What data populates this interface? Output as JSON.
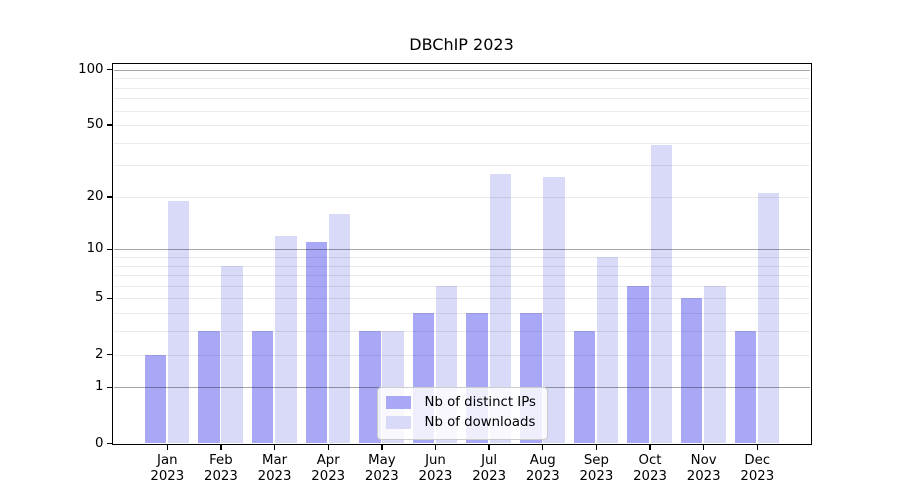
{
  "title": "DBChIP 2023",
  "colors": {
    "ips": "#a8a8f6",
    "downloads": "#d9d9f8",
    "grid_major": "rgba(0,0,0,0.35)",
    "grid_minor": "rgba(0,0,0,0.08)",
    "axis": "#000000"
  },
  "y_axis": {
    "tick_values": [
      100,
      50,
      20,
      10,
      5,
      2,
      1,
      0
    ],
    "tick_labels": [
      "100",
      "50",
      "20",
      "10",
      "5",
      "2",
      "1",
      "0"
    ],
    "major_grid_values": [
      1,
      10,
      100
    ],
    "minor_grid_values": [
      2,
      3,
      4,
      5,
      6,
      7,
      8,
      9,
      20,
      30,
      40,
      50,
      60,
      70,
      80,
      90
    ]
  },
  "x_axis": {
    "months": [
      "Jan",
      "Feb",
      "Mar",
      "Apr",
      "May",
      "Jun",
      "Jul",
      "Aug",
      "Sep",
      "Oct",
      "Nov",
      "Dec"
    ],
    "year": "2023"
  },
  "legend": {
    "items": [
      {
        "label": "Nb of distinct IPs",
        "color_key": "ips"
      },
      {
        "label": "Nb of downloads",
        "color_key": "downloads"
      }
    ]
  },
  "chart_data": {
    "type": "bar",
    "title": "DBChIP 2023",
    "categories": [
      "Jan 2023",
      "Feb 2023",
      "Mar 2023",
      "Apr 2023",
      "May 2023",
      "Jun 2023",
      "Jul 2023",
      "Aug 2023",
      "Sep 2023",
      "Oct 2023",
      "Nov 2023",
      "Dec 2023"
    ],
    "series": [
      {
        "name": "Nb of distinct IPs",
        "values": [
          2,
          3,
          3,
          11,
          3,
          4,
          4,
          4,
          3,
          6,
          5,
          3
        ]
      },
      {
        "name": "Nb of downloads",
        "values": [
          19,
          8,
          12,
          16,
          3,
          6,
          27,
          26,
          9,
          39,
          6,
          21
        ]
      }
    ],
    "y_scale": "log1p",
    "y_ticks": [
      0,
      1,
      2,
      5,
      10,
      20,
      50,
      100
    ],
    "ylim": [
      0,
      107
    ],
    "xlabel": "",
    "ylabel": "",
    "grid": "horizontal",
    "legend_position": "lower center"
  }
}
